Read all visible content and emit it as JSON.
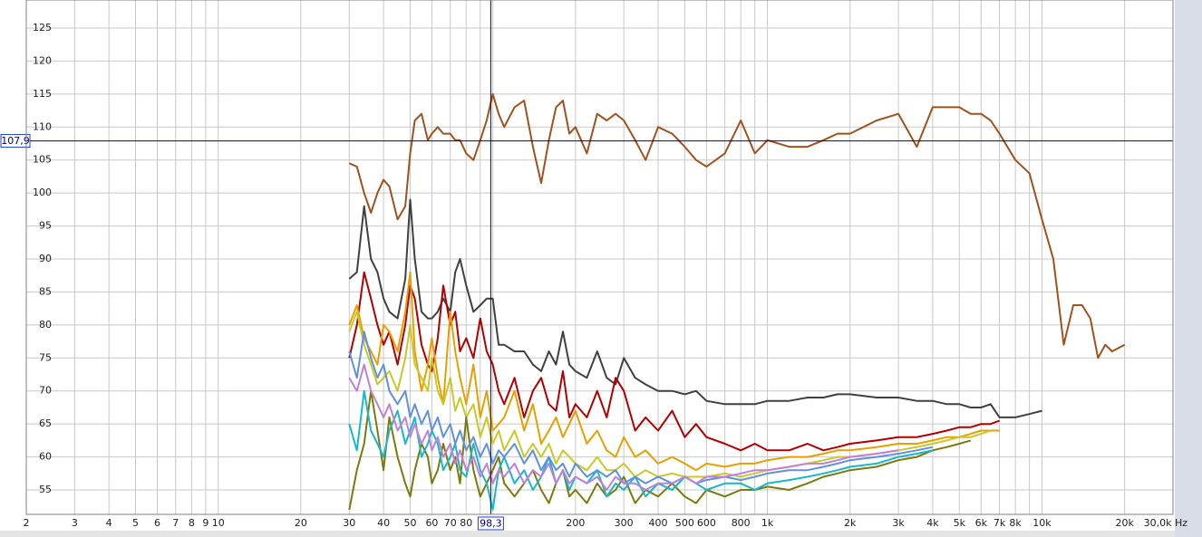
{
  "chart_data": {
    "type": "line",
    "xscale": "log",
    "grid": true,
    "xlim": [
      2,
      30000
    ],
    "ylim": [
      51.3,
      129.25
    ],
    "yticks": [
      55,
      60,
      65,
      70,
      75,
      80,
      85,
      90,
      95,
      100,
      105,
      110,
      115,
      120,
      125
    ],
    "xticks": [
      2,
      3,
      4,
      5,
      6,
      7,
      8,
      9,
      10,
      20,
      30,
      40,
      50,
      60,
      70,
      80,
      200,
      300,
      400,
      500,
      600,
      800,
      {
        "value": 1000,
        "label": "1k"
      },
      {
        "value": 2000,
        "label": "2k"
      },
      {
        "value": 3000,
        "label": "3k"
      },
      {
        "value": 4000,
        "label": "4k"
      },
      {
        "value": 5000,
        "label": "5k"
      },
      {
        "value": 6000,
        "label": "6k"
      },
      {
        "value": 7000,
        "label": "7k"
      },
      {
        "value": 8000,
        "label": "8k"
      },
      {
        "value": 10000,
        "label": "10k"
      },
      {
        "value": 20000,
        "label": "20k"
      },
      {
        "value": 30000,
        "label": "30,0k Hz"
      }
    ],
    "x_minor_grid": [
      90,
      100,
      700,
      900,
      9000
    ],
    "cursor": {
      "x": {
        "value": 98.3,
        "label": "98,3"
      },
      "y": {
        "value": 107.9,
        "label": "107,9"
      },
      "color": "#000080"
    },
    "x": [
      30,
      32,
      34,
      36,
      38,
      40,
      42,
      45,
      48,
      50,
      52,
      55,
      58,
      60,
      63,
      66,
      70,
      73,
      76,
      80,
      85,
      90,
      95,
      100,
      105,
      110,
      120,
      130,
      140,
      150,
      160,
      170,
      180,
      190,
      200,
      220,
      240,
      260,
      280,
      300,
      330,
      360,
      400,
      450,
      500,
      550,
      600,
      700,
      800,
      900,
      1000,
      1200,
      1400,
      1600,
      1800,
      2000,
      2500,
      3000,
      3500,
      4000,
      4500,
      5000,
      5500,
      6000,
      6500,
      7000,
      8000,
      9000,
      10000,
      11000,
      12000,
      13000,
      14000,
      15000,
      16000,
      17000,
      18000,
      20000
    ],
    "series": [
      {
        "color": "#a0521e",
        "values": [
          104.5,
          104,
          100,
          97,
          100,
          102,
          101,
          96,
          98,
          106,
          111,
          112,
          108,
          109,
          110,
          109,
          109,
          108,
          108,
          106,
          105,
          108,
          111,
          115,
          112,
          110,
          113,
          114,
          107,
          101.5,
          108,
          113,
          114,
          109,
          110,
          106,
          112,
          111,
          112,
          111,
          108,
          105,
          110,
          109,
          107,
          105,
          104,
          106,
          111,
          106,
          108,
          107,
          107,
          108,
          109,
          109,
          111,
          112,
          107,
          113,
          113,
          113,
          112,
          112,
          111,
          109,
          105,
          103,
          96,
          90,
          77,
          83,
          83,
          81,
          75,
          77,
          76,
          77
        ]
      },
      {
        "color": "#404040",
        "values": [
          87,
          88,
          98,
          90,
          88,
          84,
          82,
          81,
          87,
          99,
          90,
          82,
          81,
          81,
          82,
          84,
          82,
          88,
          90,
          86,
          82,
          83,
          84,
          84,
          77,
          77,
          76,
          76,
          74,
          73,
          76,
          74,
          79,
          74,
          73,
          72,
          76,
          72,
          71,
          75,
          72,
          71,
          70,
          70,
          69.5,
          70,
          68.5,
          68,
          68,
          68,
          68.5,
          68.5,
          69,
          69,
          69.5,
          69.5,
          69,
          69,
          68.5,
          68.5,
          68,
          68,
          67.5,
          67.5,
          68,
          66,
          66,
          66.5,
          67,
          null,
          null,
          null,
          null,
          null,
          null,
          null,
          null,
          null
        ]
      },
      {
        "color": "#b00000",
        "values": [
          75,
          80,
          88,
          84,
          80,
          77,
          79,
          74,
          80,
          86,
          84,
          77,
          74,
          73,
          78,
          86,
          80,
          82,
          76,
          78,
          75,
          81,
          76,
          74,
          70,
          68,
          72,
          66,
          70,
          72,
          68,
          67,
          73,
          66,
          68,
          66,
          70,
          66,
          72,
          70,
          64,
          66,
          64,
          67,
          63,
          65,
          63,
          62,
          61,
          62,
          61,
          61,
          62,
          61,
          61.5,
          62,
          62.5,
          63,
          63,
          63.5,
          64,
          64.5,
          64.5,
          65,
          65,
          65.5,
          null,
          null,
          null,
          null,
          null,
          null,
          null,
          null,
          null,
          null,
          null,
          null
        ]
      },
      {
        "color": "#e8a000",
        "values": [
          80,
          83,
          78,
          76,
          74,
          80,
          79,
          76,
          82,
          88,
          76,
          70,
          74,
          78,
          72,
          68,
          82,
          76,
          72,
          68,
          74,
          66,
          70,
          64,
          65,
          66,
          70,
          64,
          68,
          62,
          64,
          66,
          63,
          65,
          67,
          62,
          64,
          61,
          60,
          63,
          60,
          61,
          59,
          60,
          59,
          58,
          59,
          58.5,
          59,
          59,
          59.5,
          60,
          60,
          60.5,
          61,
          61,
          61.5,
          62,
          62,
          62.5,
          63,
          63,
          63.5,
          64,
          64,
          64,
          null,
          null,
          null,
          null,
          null,
          null,
          null,
          null,
          null,
          null,
          null,
          null
        ]
      },
      {
        "color": "#c8c828",
        "values": [
          79,
          82,
          77,
          74,
          71,
          72,
          73,
          70,
          75,
          80,
          74,
          72,
          70,
          75,
          70,
          68,
          72,
          67,
          69,
          66,
          68,
          63,
          66,
          62,
          64,
          61,
          64,
          60,
          62,
          60,
          62,
          59,
          61,
          60,
          59,
          58,
          60,
          58,
          58,
          59,
          57,
          58,
          57,
          57.5,
          57,
          57,
          57,
          57.5,
          57,
          57.5,
          58,
          58.5,
          59,
          59.5,
          60,
          60,
          60.5,
          61,
          61.5,
          62,
          62.5,
          63,
          63,
          63.5,
          64,
          null,
          null,
          null,
          null,
          null,
          null,
          null,
          null,
          null,
          null,
          null,
          null,
          null
        ]
      },
      {
        "color": "#7a7a10",
        "values": [
          52,
          58,
          62,
          70,
          64,
          58,
          66,
          60,
          56,
          54,
          58,
          62,
          60,
          56,
          58,
          62,
          58,
          60,
          56,
          66,
          58,
          54,
          56,
          58,
          60,
          56,
          54,
          56,
          58,
          55,
          53,
          56,
          58,
          54,
          55,
          53,
          56,
          54,
          55,
          57,
          53,
          55,
          54,
          56,
          54,
          53,
          55,
          54,
          55,
          55,
          55.5,
          55,
          56,
          57,
          57.5,
          58,
          58.5,
          59.5,
          60,
          61,
          61.5,
          62,
          62.5,
          null,
          null,
          null,
          null,
          null,
          null,
          null,
          null,
          null,
          null,
          null,
          null,
          null,
          null,
          null
        ]
      },
      {
        "color": "#18b8c8",
        "values": [
          65,
          61,
          70,
          64,
          62,
          60,
          64,
          67,
          62,
          64,
          66,
          60,
          62,
          64,
          62,
          58,
          60,
          62,
          58,
          57,
          62,
          58,
          56,
          52,
          58,
          60,
          56,
          58,
          55,
          57,
          60,
          56,
          58,
          55,
          57,
          56,
          58,
          54,
          56,
          55,
          57,
          54,
          56,
          55,
          57,
          56,
          55,
          56,
          56,
          55,
          56,
          56.5,
          57,
          57.5,
          58,
          58.5,
          59,
          60,
          60.5,
          61,
          null,
          null,
          null,
          null,
          null,
          null,
          null,
          null,
          null,
          null,
          null,
          null,
          null,
          null,
          null,
          null,
          null,
          null
        ]
      },
      {
        "color": "#6090e0",
        "values": [
          76,
          72,
          79,
          75,
          72,
          74,
          70,
          68,
          70,
          66,
          68,
          65,
          67,
          64,
          66,
          63,
          65,
          62,
          64,
          61,
          63,
          60,
          62,
          59,
          61,
          60,
          62,
          59,
          61,
          58,
          60,
          58,
          59,
          57,
          59,
          57,
          58,
          57,
          58,
          56,
          57,
          56,
          57,
          56,
          57,
          56,
          56.5,
          57,
          56.5,
          57,
          57.5,
          58,
          58,
          58.5,
          59,
          59.5,
          60,
          60.5,
          61,
          61.5,
          null,
          null,
          null,
          null,
          null,
          null,
          null,
          null,
          null,
          null,
          null,
          null,
          null,
          null,
          null,
          null,
          null,
          null
        ]
      },
      {
        "color": "#c080d8",
        "values": [
          72,
          70,
          74,
          70,
          68,
          66,
          68,
          64,
          66,
          63,
          65,
          62,
          64,
          61,
          63,
          60,
          62,
          59,
          61,
          58,
          60,
          57,
          59,
          56,
          58,
          57,
          59,
          56,
          58,
          57,
          59,
          56,
          58,
          56,
          57,
          56,
          57,
          55,
          57,
          56,
          56,
          55,
          56,
          56,
          57,
          56,
          57,
          57,
          57.5,
          58,
          58,
          58.5,
          59,
          59,
          59.5,
          60,
          60.5,
          61,
          null,
          null,
          null,
          null,
          null,
          null,
          null,
          null,
          null,
          null,
          null,
          null,
          null,
          null,
          null,
          null,
          null,
          null,
          null,
          null
        ]
      }
    ]
  }
}
